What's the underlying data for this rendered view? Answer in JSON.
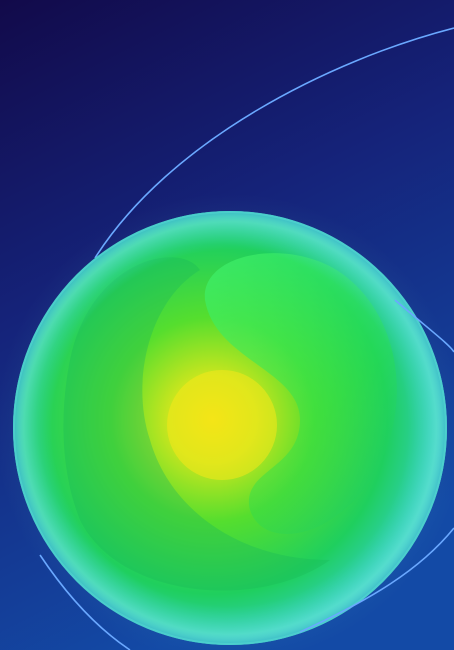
{
  "image": {
    "subject": "glowing-orb-logo",
    "colors": {
      "background_top": "#120a4a",
      "background_bottom": "#134aa6",
      "orbit_line": "#6aa8ff",
      "orb_rim": "#33d6bf",
      "orb_mid": "#2ee05a",
      "orb_core": "#f2e214"
    }
  }
}
